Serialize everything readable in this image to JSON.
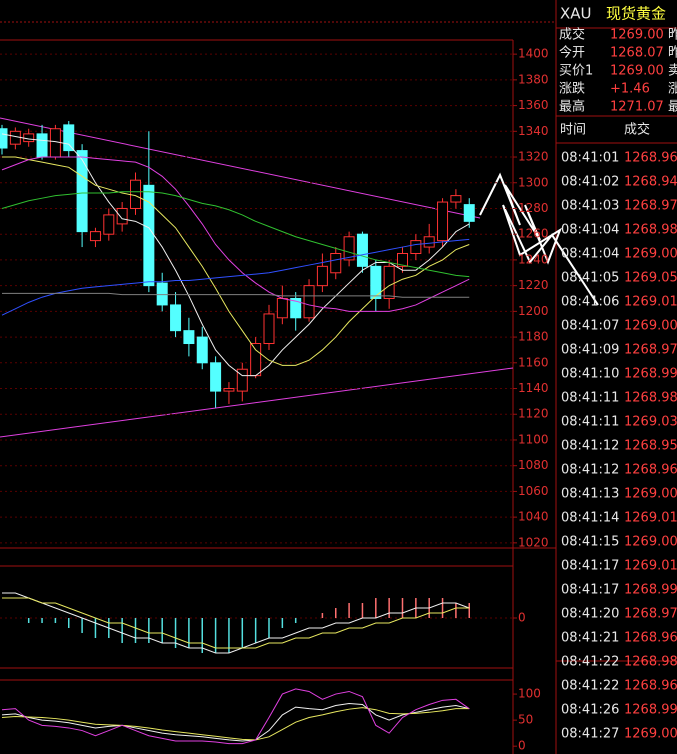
{
  "chart_data": [
    {
      "type": "candlestick",
      "open": [
        1342,
        1330,
        1332,
        1338,
        1320,
        1345,
        1325,
        1255,
        1260,
        1268,
        1280,
        1298,
        1222,
        1205,
        1185,
        1180,
        1160,
        1138,
        1138,
        1150,
        1175,
        1195,
        1210,
        1195,
        1220,
        1230,
        1240,
        1260,
        1235,
        1210,
        1235,
        1245,
        1250,
        1255,
        1285,
        1283
      ],
      "high": [
        1345,
        1343,
        1342,
        1345,
        1345,
        1348,
        1330,
        1265,
        1280,
        1285,
        1308,
        1340,
        1230,
        1215,
        1195,
        1188,
        1165,
        1145,
        1160,
        1180,
        1205,
        1220,
        1215,
        1225,
        1245,
        1250,
        1262,
        1262,
        1240,
        1240,
        1250,
        1260,
        1268,
        1288,
        1295,
        1288
      ],
      "low": [
        1322,
        1326,
        1328,
        1318,
        1318,
        1320,
        1250,
        1250,
        1255,
        1262,
        1275,
        1215,
        1200,
        1180,
        1165,
        1155,
        1125,
        1128,
        1130,
        1148,
        1170,
        1190,
        1185,
        1192,
        1215,
        1225,
        1235,
        1230,
        1200,
        1202,
        1230,
        1240,
        1245,
        1250,
        1280,
        1265
      ],
      "close": [
        1327,
        1340,
        1338,
        1320,
        1342,
        1325,
        1262,
        1262,
        1275,
        1280,
        1302,
        1220,
        1205,
        1185,
        1175,
        1160,
        1138,
        1140,
        1155,
        1175,
        1198,
        1210,
        1195,
        1220,
        1235,
        1245,
        1258,
        1235,
        1210,
        1235,
        1245,
        1255,
        1258,
        1285,
        1290,
        1270
      ],
      "up_color": "#ff3232",
      "down_color": "#54ffff",
      "series": [
        {
          "color": "#f0f0f0",
          "values": [
            1338,
            1336,
            1334,
            1333,
            1332,
            1330,
            1318,
            1300,
            1285,
            1272,
            1270,
            1265,
            1250,
            1232,
            1212,
            1190,
            1170,
            1158,
            1150,
            1150,
            1158,
            1170,
            1180,
            1190,
            1202,
            1212,
            1222,
            1232,
            1238,
            1238,
            1232,
            1232,
            1240,
            1250,
            1262,
            1268
          ]
        },
        {
          "color": "#e8e860",
          "values": [
            1320,
            1320,
            1318,
            1316,
            1314,
            1312,
            1305,
            1298,
            1295,
            1292,
            1290,
            1285,
            1275,
            1265,
            1250,
            1235,
            1218,
            1200,
            1185,
            1170,
            1162,
            1158,
            1158,
            1162,
            1170,
            1180,
            1192,
            1202,
            1212,
            1220,
            1225,
            1228,
            1235,
            1240,
            1248,
            1252
          ]
        },
        {
          "color": "#e040e0",
          "values": [
            1310,
            1314,
            1318,
            1320,
            1320,
            1320,
            1320,
            1319,
            1318,
            1317,
            1316,
            1312,
            1305,
            1295,
            1282,
            1268,
            1252,
            1240,
            1230,
            1222,
            1215,
            1210,
            1208,
            1205,
            1203,
            1202,
            1200,
            1200,
            1200,
            1200,
            1202,
            1205,
            1210,
            1215,
            1220,
            1225
          ]
        },
        {
          "color": "#30c030",
          "values": [
            1280,
            1283,
            1286,
            1288,
            1290,
            1291,
            1292,
            1292,
            1292,
            1293,
            1293,
            1293,
            1292,
            1290,
            1287,
            1284,
            1282,
            1279,
            1275,
            1270,
            1266,
            1262,
            1258,
            1255,
            1252,
            1249,
            1246,
            1243,
            1240,
            1238,
            1236,
            1234,
            1232,
            1230,
            1228,
            1227
          ]
        },
        {
          "color": "#3050ff",
          "values": [
            1197,
            1202,
            1207,
            1211,
            1214,
            1216,
            1218,
            1219,
            1220,
            1221,
            1222,
            1223,
            1223,
            1224,
            1224,
            1225,
            1226,
            1227,
            1228,
            1229,
            1230,
            1232,
            1234,
            1236,
            1238,
            1240,
            1242,
            1244,
            1246,
            1248,
            1250,
            1252,
            1253,
            1254,
            1255,
            1256
          ]
        },
        {
          "color": "#808080",
          "values": [
            1214,
            1214,
            1214,
            1214,
            1214,
            1214,
            1214,
            1214,
            1214,
            1213,
            1213,
            1213,
            1213,
            1213,
            1213,
            1213,
            1213,
            1213,
            1213,
            1213,
            1213,
            1212,
            1212,
            1212,
            1212,
            1212,
            1212,
            1212,
            1212,
            1212,
            1211,
            1211,
            1211,
            1211,
            1211,
            1211
          ]
        }
      ],
      "ylim": [
        1016,
        1411
      ],
      "yticks": [
        1020,
        1040,
        1060,
        1080,
        1100,
        1120,
        1140,
        1160,
        1180,
        1200,
        1220,
        1240,
        1260,
        1280,
        1300,
        1320,
        1340,
        1360,
        1380,
        1400
      ],
      "grid": true
    },
    {
      "type": "bar",
      "values": [
        0,
        0,
        -1,
        -1,
        -1,
        -2,
        -3,
        -4,
        -4,
        -5,
        -5,
        -5,
        -5,
        -6,
        -6,
        -7,
        -7,
        -7,
        -6,
        -5,
        -4,
        -2,
        -1,
        0,
        1,
        2,
        3,
        3,
        4,
        4,
        4,
        4,
        4,
        4,
        3,
        3
      ],
      "up_color": "#ff7070",
      "down_color": "#54e0e0",
      "series": [
        {
          "color": "#f0f0f0",
          "values": [
            5,
            5,
            4,
            3,
            2,
            1,
            0,
            -1,
            -2,
            -3,
            -4,
            -4,
            -5,
            -5,
            -6,
            -6,
            -7,
            -7,
            -6,
            -5,
            -4,
            -4,
            -3,
            -2,
            -2,
            -1,
            -1,
            0,
            0,
            1,
            1,
            2,
            2,
            3,
            3,
            2
          ]
        },
        {
          "color": "#e8e860",
          "values": [
            4,
            4,
            4,
            3,
            3,
            2,
            1,
            0,
            -1,
            -1,
            -2,
            -3,
            -3,
            -4,
            -5,
            -5,
            -6,
            -6,
            -6,
            -6,
            -5,
            -5,
            -4,
            -4,
            -3,
            -3,
            -2,
            -2,
            -1,
            -1,
            0,
            0,
            1,
            1,
            2,
            2
          ]
        }
      ],
      "ylim": [
        -10,
        10
      ],
      "yticks": [
        0
      ],
      "grid": true
    },
    {
      "type": "line",
      "series": [
        {
          "color": "#f0f0f0",
          "values": [
            60,
            62,
            55,
            50,
            48,
            45,
            40,
            35,
            38,
            40,
            35,
            30,
            25,
            22,
            20,
            18,
            15,
            12,
            10,
            12,
            30,
            60,
            75,
            72,
            70,
            78,
            82,
            80,
            60,
            50,
            60,
            65,
            70,
            75,
            78,
            72
          ]
        },
        {
          "color": "#e8e860",
          "values": [
            55,
            57,
            56,
            55,
            53,
            50,
            46,
            42,
            41,
            40,
            38,
            35,
            31,
            28,
            25,
            22,
            19,
            16,
            13,
            12,
            18,
            32,
            46,
            55,
            60,
            66,
            71,
            74,
            70,
            63,
            62,
            63,
            65,
            68,
            72,
            72
          ]
        },
        {
          "color": "#e040e0",
          "values": [
            70,
            72,
            50,
            40,
            38,
            35,
            30,
            20,
            30,
            40,
            30,
            20,
            15,
            10,
            10,
            10,
            8,
            5,
            5,
            12,
            55,
            100,
            110,
            105,
            90,
            100,
            105,
            95,
            40,
            25,
            55,
            70,
            80,
            88,
            90,
            72
          ]
        }
      ],
      "ylim": [
        -15,
        127
      ],
      "yticks": [
        0,
        50,
        100
      ],
      "grid": false
    }
  ],
  "quote": {
    "symbol": "XAU",
    "name": "现货黄金",
    "rows": [
      {
        "label": "成交",
        "value": "1269.00",
        "extra": "昨"
      },
      {
        "label": "今开",
        "value": "1268.07",
        "extra": "昨"
      },
      {
        "label": "买价1",
        "value": "1269.00",
        "extra": "卖"
      },
      {
        "label": "涨跌",
        "value": "+1.46",
        "extra": "涨"
      },
      {
        "label": "最高",
        "value": "1271.07",
        "extra": "最"
      }
    ]
  },
  "trades": {
    "header": [
      "时间",
      "成交"
    ],
    "rows": [
      [
        "08:41:01",
        "1268.96"
      ],
      [
        "08:41:02",
        "1268.94"
      ],
      [
        "08:41:03",
        "1268.97"
      ],
      [
        "08:41:04",
        "1268.98"
      ],
      [
        "08:41:04",
        "1269.00"
      ],
      [
        "08:41:05",
        "1269.05"
      ],
      [
        "08:41:06",
        "1269.01"
      ],
      [
        "08:41:07",
        "1269.00"
      ],
      [
        "08:41:09",
        "1268.97"
      ],
      [
        "08:41:10",
        "1268.99"
      ],
      [
        "08:41:11",
        "1268.98"
      ],
      [
        "08:41:11",
        "1269.03"
      ],
      [
        "08:41:12",
        "1268.95"
      ],
      [
        "08:41:12",
        "1268.96"
      ],
      [
        "08:41:13",
        "1269.00"
      ],
      [
        "08:41:14",
        "1269.01"
      ],
      [
        "08:41:15",
        "1269.00"
      ],
      [
        "08:41:17",
        "1269.01"
      ],
      [
        "08:41:17",
        "1268.99"
      ],
      [
        "08:41:20",
        "1268.97"
      ],
      [
        "08:41:21",
        "1268.96"
      ],
      [
        "08:41:22",
        "1268.98"
      ],
      [
        "08:41:22",
        "1268.96"
      ],
      [
        "08:41:26",
        "1268.99"
      ],
      [
        "08:41:27",
        "1269.00"
      ]
    ]
  }
}
